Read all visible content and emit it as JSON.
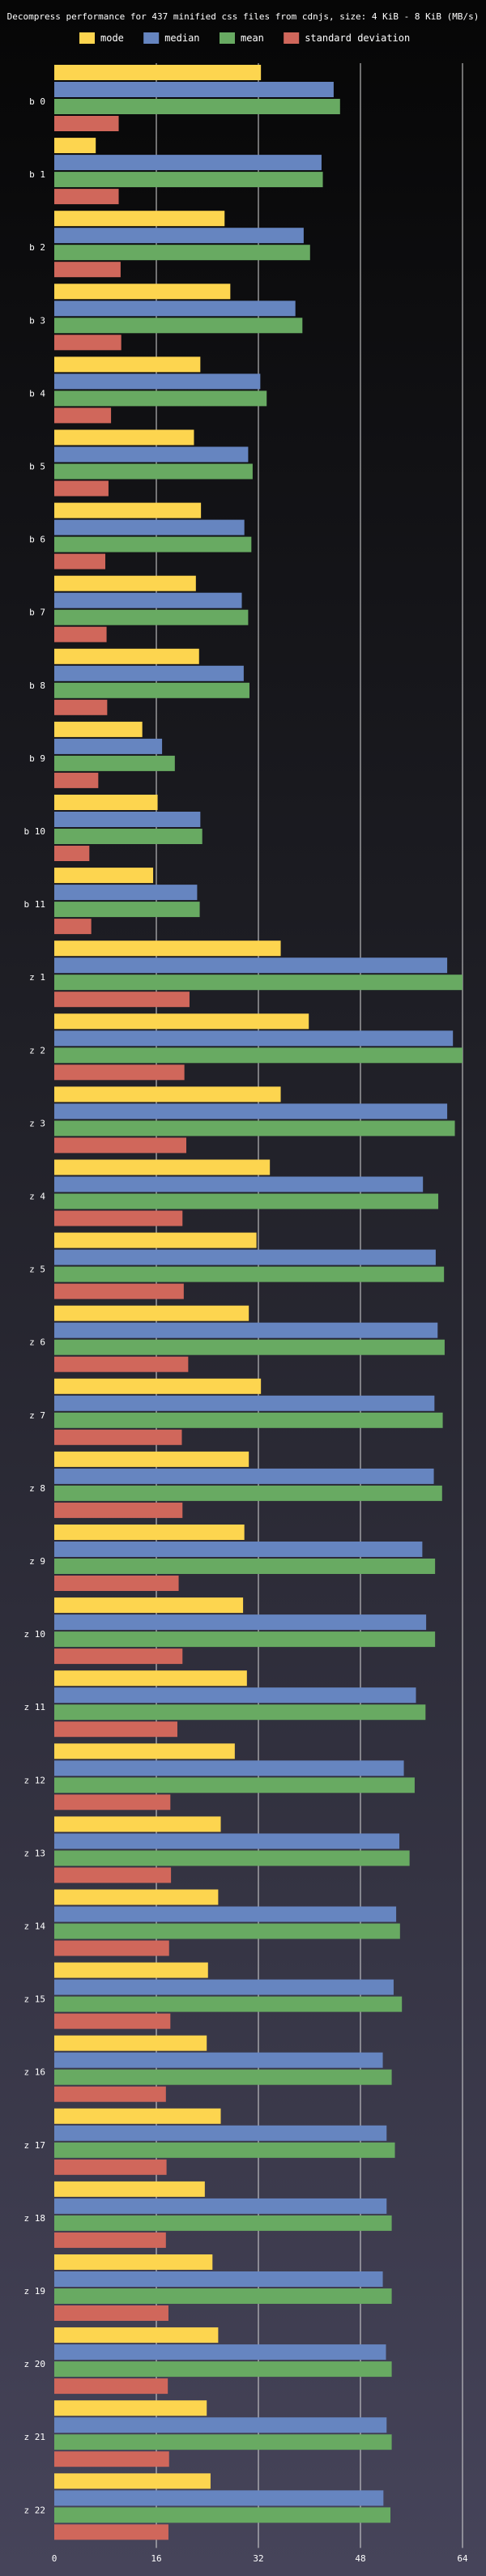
{
  "chart_data": {
    "type": "bar",
    "orientation": "horizontal",
    "title": "Decompress performance for 437 minified css files from cdnjs, size: 4 KiB - 8 KiB (MB/s)",
    "xlabel": "",
    "ylabel": "",
    "xlim": [
      0,
      64
    ],
    "xticks": [
      0,
      16,
      32,
      48,
      64
    ],
    "grid": true,
    "legend_position": "top",
    "categories": [
      "b 0",
      "b 1",
      "b 2",
      "b 3",
      "b 4",
      "b 5",
      "b 6",
      "b 7",
      "b 8",
      "b 9",
      "b 10",
      "b 11",
      "z 1",
      "z 2",
      "z 3",
      "z 4",
      "z 5",
      "z 6",
      "z 7",
      "z 8",
      "z 9",
      "z 10",
      "z 11",
      "z 12",
      "z 13",
      "z 14",
      "z 15",
      "z 16",
      "z 17",
      "z 18",
      "z 19",
      "z 20",
      "z 21",
      "z 22"
    ],
    "series": [
      {
        "name": "mode",
        "color": "#fdd54f",
        "values": [
          32.4,
          6.5,
          26.7,
          27.6,
          22.9,
          21.9,
          23.0,
          22.2,
          22.7,
          13.8,
          16.2,
          15.5,
          35.5,
          39.9,
          35.5,
          33.8,
          31.7,
          30.5,
          32.4,
          30.5,
          29.8,
          29.6,
          30.2,
          28.3,
          26.1,
          25.7,
          24.1,
          23.9,
          26.1,
          23.6,
          24.8,
          25.7,
          23.9,
          24.5
        ]
      },
      {
        "name": "median",
        "color": "#6685c0",
        "values": [
          43.8,
          41.9,
          39.1,
          37.8,
          32.3,
          30.4,
          29.8,
          29.4,
          29.7,
          16.9,
          22.9,
          22.4,
          61.6,
          62.5,
          61.6,
          57.8,
          59.8,
          60.1,
          59.6,
          59.5,
          57.7,
          58.3,
          56.7,
          54.8,
          54.1,
          53.6,
          53.2,
          51.5,
          52.1,
          52.1,
          51.5,
          52.0,
          52.1,
          51.6
        ]
      },
      {
        "name": "mean",
        "color": "#68aa62",
        "values": [
          44.8,
          42.1,
          40.1,
          38.9,
          33.3,
          31.1,
          30.9,
          30.4,
          30.6,
          18.9,
          23.2,
          22.8,
          64.0,
          64.0,
          62.8,
          60.2,
          61.1,
          61.2,
          60.9,
          60.8,
          59.7,
          59.7,
          58.2,
          56.5,
          55.7,
          54.2,
          54.5,
          52.9,
          53.4,
          52.9,
          52.9,
          52.9,
          52.9,
          52.7
        ]
      },
      {
        "name": "standard deviation",
        "color": "#d0675b",
        "values": [
          10.1,
          10.1,
          10.4,
          10.5,
          8.9,
          8.5,
          8.0,
          8.2,
          8.3,
          6.9,
          5.5,
          5.8,
          21.2,
          20.4,
          20.7,
          20.1,
          20.3,
          21.0,
          20.0,
          20.1,
          19.5,
          20.1,
          19.3,
          18.2,
          18.3,
          18.0,
          18.2,
          17.5,
          17.6,
          17.5,
          17.9,
          17.8,
          18.0,
          17.9
        ]
      }
    ]
  }
}
